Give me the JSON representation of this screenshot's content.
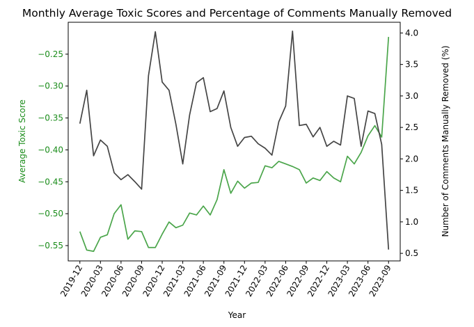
{
  "chart_data": {
    "type": "line",
    "title": "Monthly Average Toxic Scores and Percentage of Comments Manually Removed",
    "xlabel": "Year",
    "ylabel_left": "Average Toxic Score",
    "ylabel_right": "Number of Comments Manually Removed (%)",
    "x_tick_labels": [
      "2019-12",
      "2020-03",
      "2020-06",
      "2020-09",
      "2020-12",
      "2021-03",
      "2021-06",
      "2021-09",
      "2021-12",
      "2022-03",
      "2022-06",
      "2022-09",
      "2022-12",
      "2023-03",
      "2023-06",
      "2023-09"
    ],
    "x_tick_month_index": [
      0,
      3,
      6,
      9,
      12,
      15,
      18,
      21,
      24,
      27,
      30,
      33,
      36,
      39,
      42,
      45
    ],
    "x_range_months": [
      -1.7,
      46.7
    ],
    "ylim_left": [
      -0.574,
      -0.2
    ],
    "yticks_left": [
      -0.55,
      -0.5,
      -0.45,
      -0.4,
      -0.35,
      -0.3,
      -0.25
    ],
    "yticks_left_labels": [
      "−0.55",
      "−0.50",
      "−0.45",
      "−0.40",
      "−0.35",
      "−0.30",
      "−0.25"
    ],
    "ylim_right": [
      0.38,
      4.17
    ],
    "yticks_right": [
      0.5,
      1.0,
      1.5,
      2.0,
      2.5,
      3.0,
      3.5,
      4.0
    ],
    "yticks_right_labels": [
      "0.5",
      "1.0",
      "1.5",
      "2.0",
      "2.5",
      "3.0",
      "3.5",
      "4.0"
    ],
    "series": [
      {
        "axis": "left",
        "color": "#4aa54a",
        "values": [
          -0.528,
          -0.557,
          -0.559,
          -0.537,
          -0.533,
          -0.5,
          -0.486,
          -0.54,
          -0.527,
          -0.528,
          -0.553,
          -0.553,
          -0.532,
          -0.513,
          -0.522,
          -0.518,
          -0.499,
          -0.502,
          -0.488,
          -0.502,
          -0.478,
          -0.431,
          -0.468,
          -0.449,
          -0.46,
          -0.452,
          -0.451,
          -0.425,
          -0.428,
          -0.418,
          -0.422,
          -0.426,
          -0.431,
          -0.452,
          -0.444,
          -0.448,
          -0.434,
          -0.444,
          -0.45,
          -0.41,
          -0.422,
          -0.404,
          -0.378,
          -0.362,
          -0.38,
          -0.223
        ]
      },
      {
        "axis": "right",
        "color": "#444444",
        "values": [
          2.56,
          3.09,
          2.05,
          2.3,
          2.2,
          1.78,
          1.67,
          1.75,
          1.64,
          1.52,
          3.32,
          4.02,
          3.22,
          3.09,
          2.55,
          1.92,
          2.7,
          3.21,
          3.29,
          2.75,
          2.8,
          3.08,
          2.5,
          2.2,
          2.34,
          2.36,
          2.24,
          2.17,
          2.06,
          2.59,
          2.84,
          4.03,
          2.53,
          2.55,
          2.35,
          2.5,
          2.2,
          2.28,
          2.22,
          3.0,
          2.96,
          2.2,
          2.76,
          2.72,
          2.23,
          0.56
        ]
      }
    ],
    "grid": false,
    "legend": "none"
  }
}
